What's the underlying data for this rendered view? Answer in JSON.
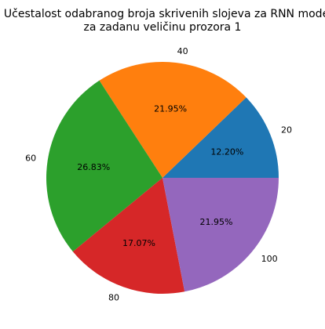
{
  "chart_data": {
    "type": "pie",
    "title": "Učestalost odabranog broja skrivenih slojeva za RNN model",
    "subtitle": "za zadanu veličinu prozora 1",
    "categories": [
      "20",
      "40",
      "60",
      "80",
      "100"
    ],
    "values": [
      12.2,
      21.95,
      26.83,
      17.07,
      21.95
    ],
    "value_labels": [
      "12.20%",
      "21.95%",
      "26.83%",
      "17.07%",
      "21.95%"
    ],
    "colors": [
      "#1f77b4",
      "#ff7f0e",
      "#2ca02c",
      "#d62728",
      "#9467bd"
    ],
    "start_angle_deg": 0,
    "direction": "counterclockwise",
    "legend": "none"
  }
}
